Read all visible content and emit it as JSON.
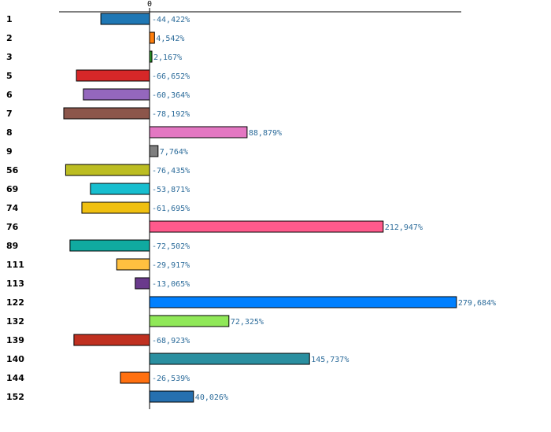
{
  "chart_data": {
    "type": "bar",
    "orientation": "horizontal",
    "title": "",
    "xlabel": "",
    "ylabel": "",
    "xlim": [
      -100,
      300
    ],
    "zero_tick_label": "0",
    "categories": [
      "1",
      "2",
      "3",
      "5",
      "6",
      "7",
      "8",
      "9",
      "56",
      "69",
      "74",
      "76",
      "89",
      "111",
      "113",
      "122",
      "132",
      "139",
      "140",
      "144",
      "152"
    ],
    "values": [
      -44.422,
      4.542,
      2.167,
      -66.652,
      -60.364,
      -78.192,
      88.879,
      7.764,
      -76.435,
      -53.871,
      -61.695,
      212.947,
      -72.502,
      -29.917,
      -13.065,
      279.684,
      72.325,
      -68.923,
      145.737,
      -26.539,
      40.026
    ],
    "value_labels": [
      "-44,422%",
      "4,542%",
      "2,167%",
      "-66,652%",
      "-60,364%",
      "-78,192%",
      "88,879%",
      "7,764%",
      "-76,435%",
      "-53,871%",
      "-61,695%",
      "212,947%",
      "-72,502%",
      "-29,917%",
      "-13,065%",
      "279,684%",
      "72,325%",
      "-68,923%",
      "145,737%",
      "-26,539%",
      "40,026%"
    ],
    "colors": [
      "#1f77b4",
      "#ff7f0e",
      "#2ca02c",
      "#d62728",
      "#9467bd",
      "#8c564b",
      "#e377c2",
      "#7f7f7f",
      "#bcbd22",
      "#17becf",
      "#f0c010",
      "#ff5a8c",
      "#10aaa0",
      "#ffc040",
      "#6a3a8c",
      "#0080ff",
      "#90e858",
      "#c03020",
      "#2a8fa0",
      "#ff7010",
      "#2670b0"
    ],
    "label_color": "#2b6b9a"
  }
}
